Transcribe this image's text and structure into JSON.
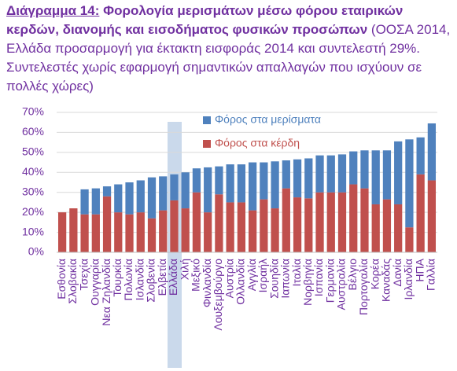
{
  "chart_data": {
    "type": "bar_stacked",
    "title_label": "Διάγραμμα 14:",
    "title": "Φορολογία μερισμάτων μέσω φόρου εταιρικών κερδών,  διανομής και εισοδήματος φυσικών προσώπων",
    "subtitle": "(ΟΟΣΑ 2014, Ελλάδα προσαρμογή για έκτακτη εισφοράς 2014 και συντελεστή 29%. Συντελεστές χωρίς εφαρμογή σημαντικών απαλλαγών που ισχύουν σε πολλές χώρες)",
    "categories": [
      "Εσθονία",
      "Σλοβακία",
      "Τσεχία",
      "Ουγγαρία",
      "Νεα Ζηλανδία",
      "Τουρκία",
      "Πολωνία",
      "Ισλανδία",
      "Σλοβενία",
      "Ελβετία",
      "Ελλάδα",
      "Χιλή",
      "Μεξικό",
      "Φινλανδία",
      "Λουξεμβούργο",
      "Αυστρία",
      "Ολλανδία",
      "Αγγλία",
      "Ισραήλ",
      "Σουηδία",
      "Ιαπωνία",
      "Ιταλία",
      "Νορβηγία",
      "Ισπανία",
      "Γερμανία",
      "Αυστραλία",
      "Βέλγιο",
      "Πορτογαλία",
      "Κορέα",
      "Καναδάς",
      "Δανία",
      "Ιρλανδία",
      "ΗΠΑ",
      "Γαλλία"
    ],
    "series": [
      {
        "name": "Φόρος στα κέρδη",
        "color": "#c0504d",
        "values": [
          20,
          22,
          19,
          19,
          28,
          20,
          19,
          20,
          17,
          21,
          26,
          22,
          30,
          20,
          29,
          25,
          25,
          21,
          26.5,
          22,
          32,
          27.5,
          27,
          30,
          30,
          30,
          34,
          32,
          24,
          26.5,
          24,
          12.5,
          39,
          36
        ]
      },
      {
        "name": "Φόρος στα μερίσματα",
        "color": "#4f81bd",
        "values": [
          0,
          0,
          12.5,
          13,
          5,
          14,
          16,
          16,
          20.5,
          17,
          13,
          18,
          12,
          22.5,
          14,
          19,
          19,
          24,
          18.5,
          23.5,
          14,
          19,
          20,
          18.5,
          18.5,
          19,
          16.5,
          19,
          27,
          24.5,
          31.5,
          44,
          18.5,
          28.5
        ]
      }
    ],
    "ylim": [
      0,
      70
    ],
    "yticks": [
      {
        "value": 0,
        "label": "0%"
      },
      {
        "value": 10,
        "label": "10%"
      },
      {
        "value": 20,
        "label": "20%"
      },
      {
        "value": 30,
        "label": "30%"
      },
      {
        "value": 40,
        "label": "40%"
      },
      {
        "value": 50,
        "label": "50%"
      },
      {
        "value": 60,
        "label": "60%"
      },
      {
        "value": 70,
        "label": "70%"
      }
    ],
    "grid": true
  }
}
